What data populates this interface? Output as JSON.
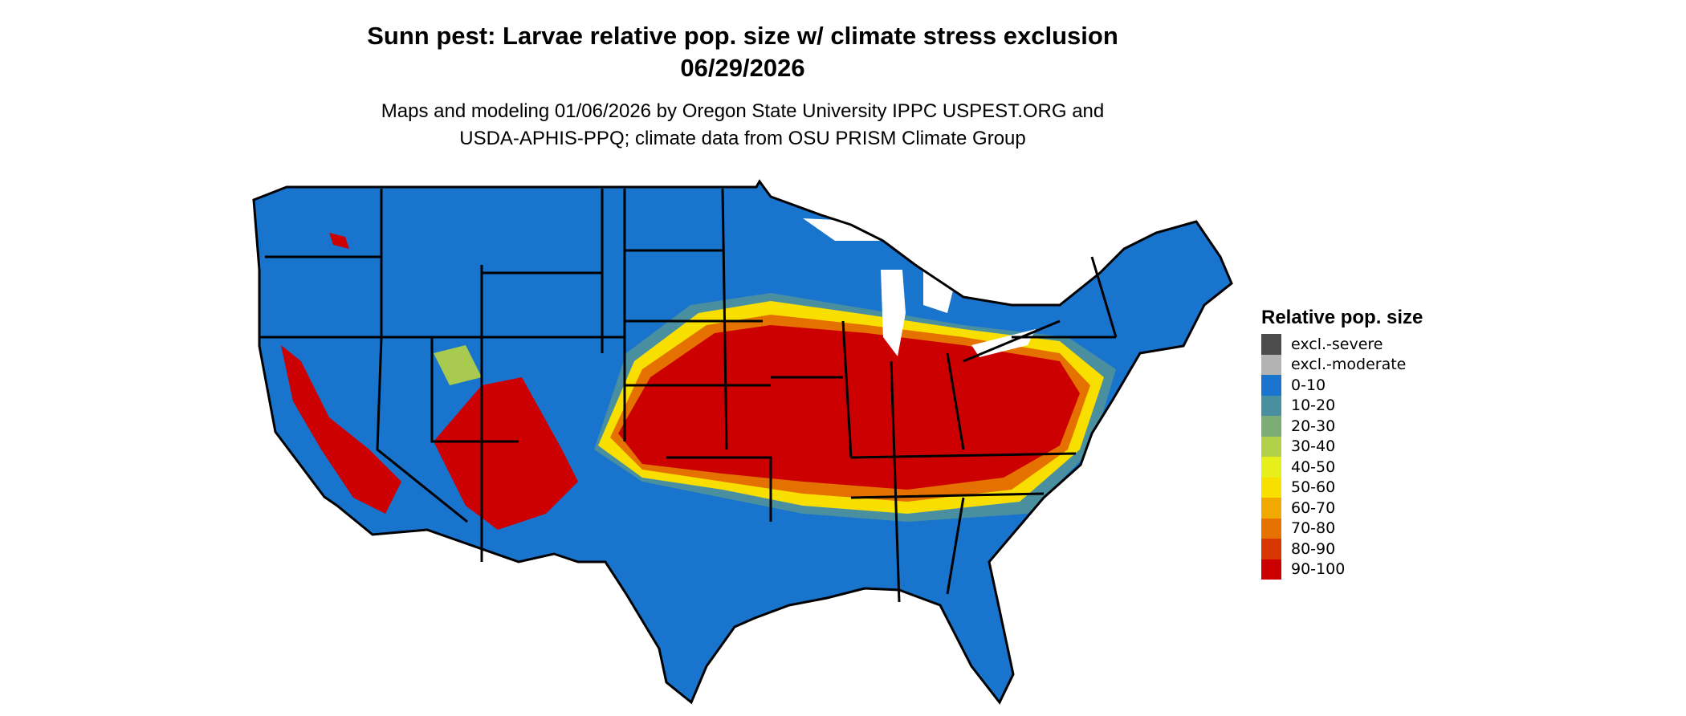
{
  "header": {
    "title": "Sunn pest: Larvae relative pop. size w/ climate stress exclusion",
    "date": "06/29/2026",
    "subtitle_line1": "Maps and modeling 01/06/2026 by Oregon State University IPPC USPEST.ORG and",
    "subtitle_line2": "USDA-APHIS-PPQ; climate data from OSU PRISM Climate Group"
  },
  "chart_data": {
    "type": "heatmap",
    "title": "Sunn pest: Larvae relative pop. size w/ climate stress exclusion",
    "region": "contiguous United States with state boundaries",
    "legend_placement": "right",
    "legend": {
      "title": "Relative pop. size",
      "items": [
        {
          "label": "excl.-severe",
          "color": "#4d4d4d"
        },
        {
          "label": "excl.-moderate",
          "color": "#b3b3b3"
        },
        {
          "label": "0-10",
          "color": "#1874cd"
        },
        {
          "label": "10-20",
          "color": "#4a8f9f"
        },
        {
          "label": "20-30",
          "color": "#7bad74"
        },
        {
          "label": "30-40",
          "color": "#b2d048"
        },
        {
          "label": "40-50",
          "color": "#e6ef1a"
        },
        {
          "label": "50-60",
          "color": "#f8df00"
        },
        {
          "label": "60-70",
          "color": "#f1a800"
        },
        {
          "label": "70-80",
          "color": "#e57200"
        },
        {
          "label": "80-90",
          "color": "#d83800"
        },
        {
          "label": "90-100",
          "color": "#cc0000"
        }
      ]
    }
  }
}
